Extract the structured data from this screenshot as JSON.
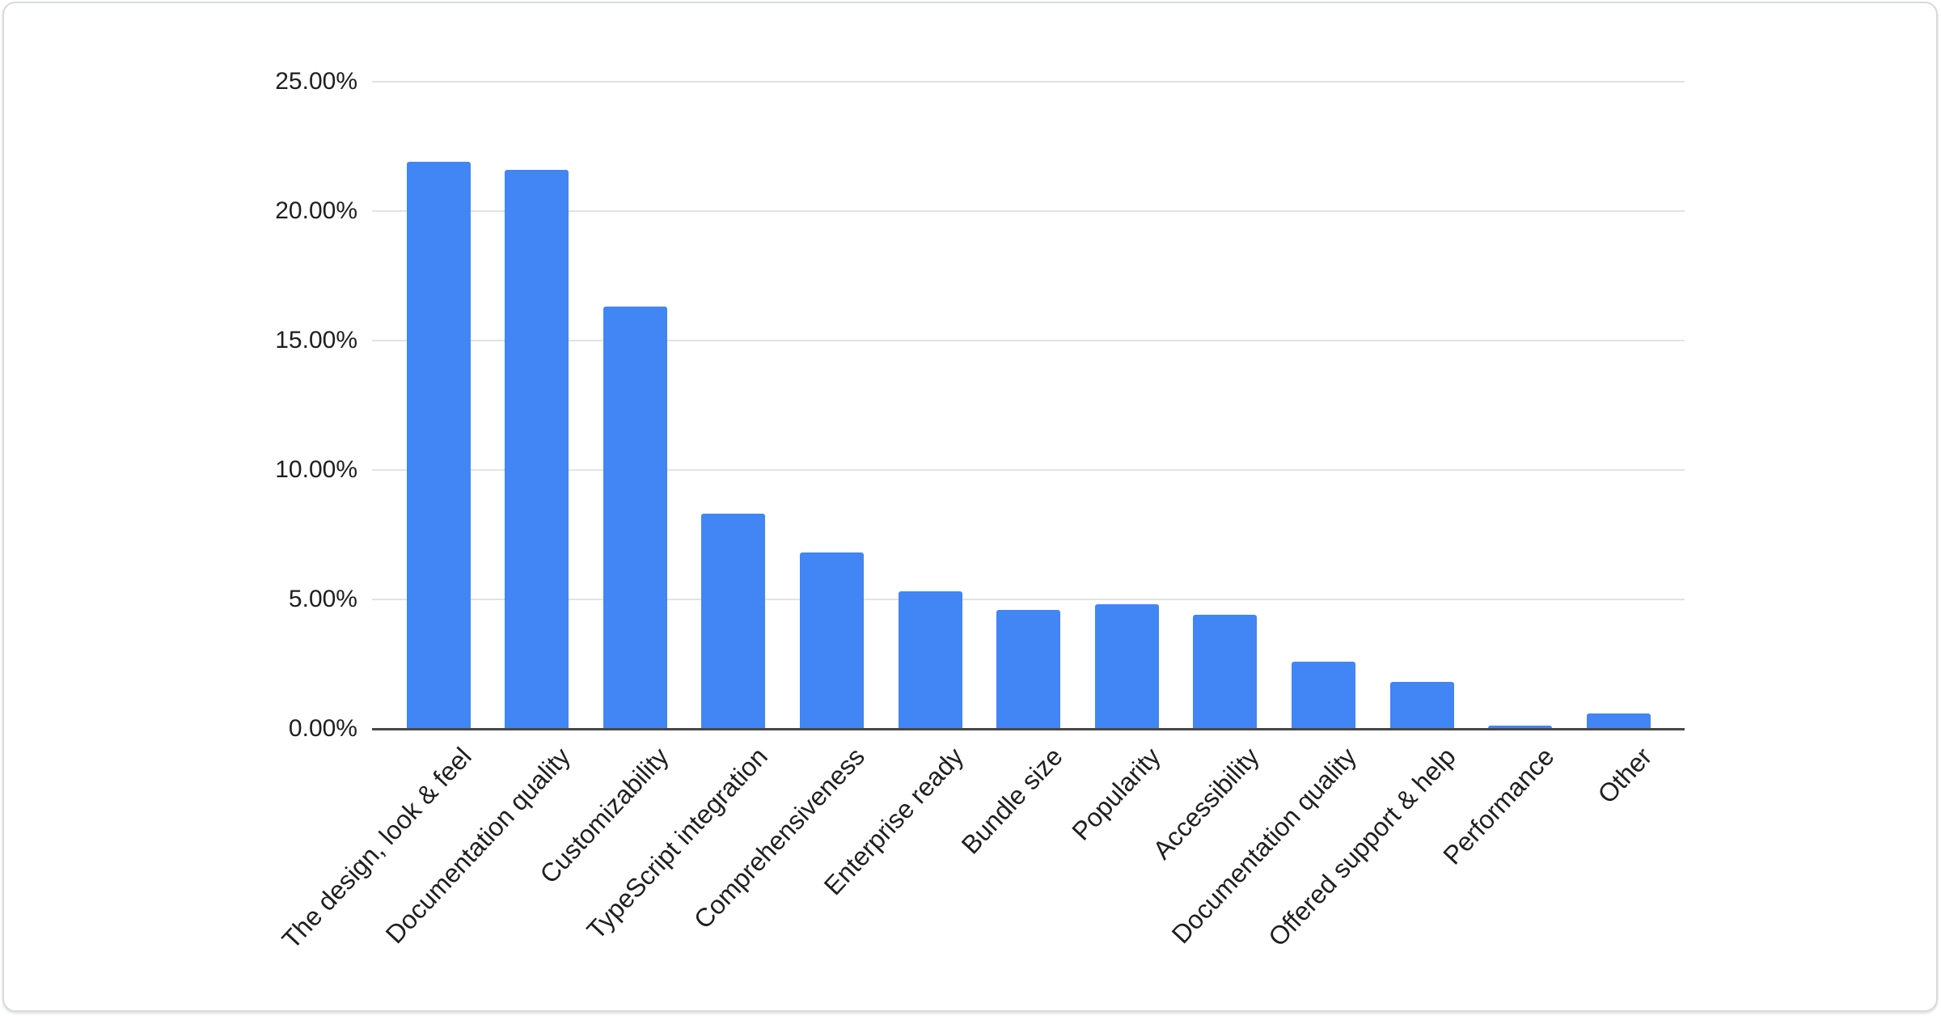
{
  "chart_data": {
    "type": "bar",
    "title": "",
    "xlabel": "",
    "ylabel": "",
    "categories": [
      "The design, look & feel",
      "Documentation quality",
      "Customizability",
      "TypeScript integration",
      "Comprehensiveness",
      "Enterprise ready",
      "Bundle size",
      "Popularity",
      "Accessibility",
      "Documentation quality",
      "Offered support & help",
      "Performance",
      "Other"
    ],
    "values": [
      21.9,
      21.6,
      16.3,
      8.3,
      6.8,
      5.3,
      4.6,
      4.8,
      4.4,
      2.6,
      1.8,
      0.1,
      0.6
    ],
    "value_unit": "%",
    "y_ticks": [
      "25.00%",
      "20.00%",
      "15.00%",
      "10.00%",
      "5.00%",
      "0.00%"
    ],
    "y_tick_values": [
      25,
      20,
      15,
      10,
      5,
      0
    ],
    "ylim": [
      0,
      25
    ],
    "grid": true,
    "legend": "none",
    "bar_color": "#4285f4",
    "grid_color": "#e3e3e3",
    "axis_color": "#474747",
    "label_color": "#1f1f1f",
    "background_color": "#ffffff",
    "card_border_color": "#d7dadd",
    "x_label_angle_deg": -47
  }
}
